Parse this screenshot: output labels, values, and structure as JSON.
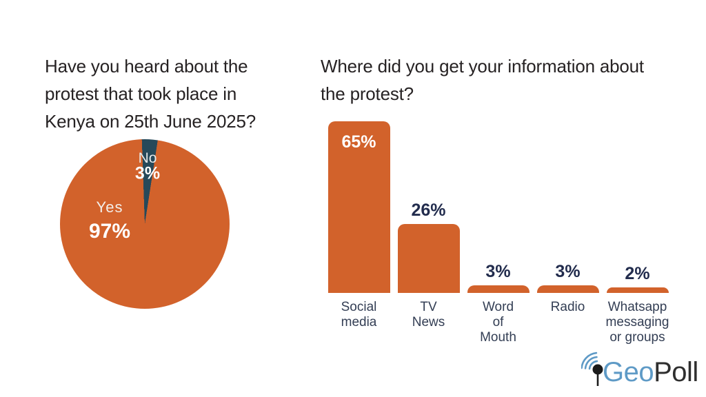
{
  "left_panel": {
    "title": "Have you heard about the\nprotest that took place in\nKenya on 25th June 2025?"
  },
  "right_panel": {
    "title": "Where did you get your information about\nthe protest?"
  },
  "chart_data": [
    {
      "type": "pie",
      "title": "Have you heard about the protest that took place in Kenya on 25th June 2025?",
      "labels": [
        "Yes",
        "No"
      ],
      "values": [
        97,
        3
      ],
      "value_labels": [
        "97%",
        "3%"
      ],
      "colors": [
        "#D2622B",
        "#26495A"
      ],
      "start_angle_deg": -2,
      "legend": "none",
      "label_style": "labels inside slices, white text"
    },
    {
      "type": "bar",
      "title": "Where did you get your information about the protest?",
      "categories": [
        "Social media",
        "TV News",
        "Word of Mouth",
        "Radio",
        "Whatsapp messaging or groups"
      ],
      "category_lines": [
        [
          "Social",
          "media"
        ],
        [
          "TV",
          "News"
        ],
        [
          "Word",
          "of",
          "Mouth"
        ],
        [
          "Radio"
        ],
        [
          "Whatsapp",
          "messaging",
          "or groups"
        ]
      ],
      "values": [
        65,
        26,
        3,
        3,
        2
      ],
      "value_labels": [
        "65%",
        "26%",
        "3%",
        "3%",
        "2%"
      ],
      "value_label_inside": [
        true,
        false,
        false,
        false,
        false
      ],
      "bar_color": "#D2622B",
      "value_label_color_inside": "#FFFFFF",
      "value_label_color_outside": "#222C4D",
      "xlabel": "",
      "ylabel": "",
      "ylim": [
        0,
        65
      ],
      "axes": "hidden",
      "grid": false,
      "legend": "none"
    }
  ],
  "logo": {
    "brand_part_blue": "Geo",
    "brand_part_dark": "Poll",
    "icon": "map-pin-with-signal-waves",
    "color_blue": "#5E9AC6",
    "color_dark": "#2F2F2F"
  },
  "palette": {
    "orange": "#D2622B",
    "teal": "#26495A",
    "navy": "#222C4D",
    "category": "#333E54",
    "title": "#262223",
    "logo_blue": "#5E9AC6",
    "logo_dark": "#2F2F2F",
    "background": "#FFFFFF"
  }
}
